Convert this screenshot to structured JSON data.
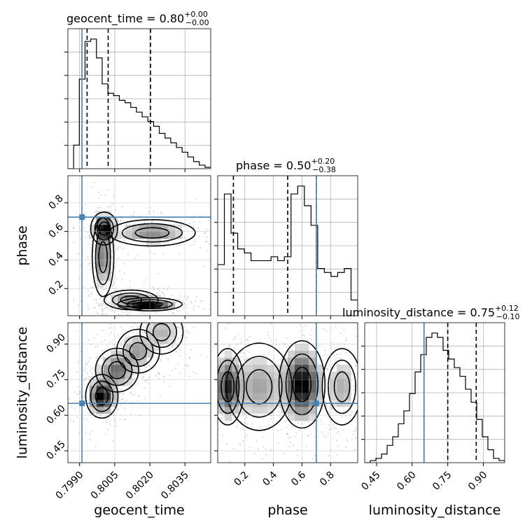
{
  "chart_data": {
    "type": "corner",
    "parameters": [
      {
        "name": "geocent_time",
        "title_prefix": "geocent_time = ",
        "median": "0.80",
        "plus": "+0.00",
        "minus": "−0.00",
        "range": [
          0.7985,
          0.8046
        ],
        "ticks": [
          0.799,
          0.8005,
          0.802,
          0.8035
        ],
        "tick_labels": [
          "0.7990",
          "0.8005",
          "0.8020",
          "0.8035"
        ],
        "truth": 0.7991,
        "quantiles": [
          0.79932,
          0.80022,
          0.80203
        ],
        "hist_edges": [
          0.7985,
          0.8046
        ],
        "hist_counts": [
          0,
          1,
          3.8,
          5.4,
          5.5,
          4.7,
          3.6,
          3.2,
          3.1,
          2.9,
          2.8,
          2.6,
          2.4,
          2.2,
          2.0,
          1.8,
          1.5,
          1.3,
          1.1,
          0.9,
          0.7,
          0.5,
          0.3,
          0.15,
          0.06
        ]
      },
      {
        "name": "phase",
        "title_prefix": "phase = ",
        "median": "0.50",
        "plus": "+0.20",
        "minus": "−0.38",
        "range": [
          0.01,
          0.99
        ],
        "ticks": [
          0.2,
          0.4,
          0.6,
          0.8
        ],
        "tick_labels": [
          "0.2",
          "0.4",
          "0.6",
          "0.8"
        ],
        "truth": 0.7,
        "quantiles": [
          0.12,
          0.5,
          0.7
        ],
        "hist_edges": [
          0.01,
          0.99
        ],
        "hist_counts": [
          1.3,
          3.1,
          2.1,
          1.7,
          1.6,
          1.4,
          1.4,
          1.4,
          1.5,
          1.4,
          1.5,
          3.1,
          3.3,
          2.8,
          2.3,
          1.2,
          1.1,
          1.0,
          1.1,
          1.2,
          0.4
        ]
      },
      {
        "name": "luminosity_distance",
        "title_prefix": "luminosity_distance = ",
        "median": "0.75",
        "plus": "+0.12",
        "minus": "−0.10",
        "range": [
          0.4,
          0.99
        ],
        "ticks": [
          0.45,
          0.6,
          0.75,
          0.9
        ],
        "tick_labels": [
          "0.45",
          "0.60",
          "0.75",
          "0.90"
        ],
        "truth": 0.65,
        "quantiles": [
          0.65,
          0.75,
          0.87
        ],
        "hist_edges": [
          0.4,
          0.99
        ],
        "hist_counts": [
          0,
          0.05,
          0.1,
          0.2,
          0.4,
          0.6,
          0.9,
          1.2,
          1.6,
          2.1,
          2.5,
          2.9,
          3.0,
          2.9,
          2.6,
          2.4,
          2.2,
          2.0,
          1.7,
          1.4,
          1.0,
          0.6,
          0.3,
          0.1,
          0.05
        ]
      }
    ],
    "pairs": [
      {
        "x": "geocent_time",
        "y": "phase",
        "truth": [
          0.7991,
          0.7
        ],
        "density_peaks": [
          {
            "x": 0.80005,
            "y": 0.62,
            "sx": 0.00025,
            "sy": 0.05,
            "w": 1.0
          },
          {
            "x": 0.8,
            "y": 0.42,
            "sx": 0.0002,
            "sy": 0.12,
            "w": 0.6
          },
          {
            "x": 0.802,
            "y": 0.09,
            "sx": 0.0006,
            "sy": 0.02,
            "w": 1.0
          },
          {
            "x": 0.8012,
            "y": 0.12,
            "sx": 0.0005,
            "sy": 0.03,
            "w": 0.5
          },
          {
            "x": 0.8021,
            "y": 0.59,
            "sx": 0.0008,
            "sy": 0.04,
            "w": 0.5
          }
        ]
      },
      {
        "x": "geocent_time",
        "y": "luminosity_distance",
        "truth": [
          0.7991,
          0.65
        ],
        "density_peaks": [
          {
            "x": 0.79995,
            "y": 0.68,
            "sx": 0.0003,
            "sy": 0.04,
            "w": 1.0
          },
          {
            "x": 0.8006,
            "y": 0.79,
            "sx": 0.0004,
            "sy": 0.04,
            "w": 0.6
          },
          {
            "x": 0.8015,
            "y": 0.87,
            "sx": 0.0004,
            "sy": 0.04,
            "w": 0.4
          },
          {
            "x": 0.8025,
            "y": 0.95,
            "sx": 0.0004,
            "sy": 0.04,
            "w": 0.3
          }
        ]
      },
      {
        "x": "phase",
        "y": "luminosity_distance",
        "truth": [
          0.7,
          0.65
        ],
        "density_peaks": [
          {
            "x": 0.08,
            "y": 0.72,
            "sx": 0.05,
            "sy": 0.07,
            "w": 0.8
          },
          {
            "x": 0.6,
            "y": 0.73,
            "sx": 0.07,
            "sy": 0.08,
            "w": 1.0
          },
          {
            "x": 0.3,
            "y": 0.72,
            "sx": 0.1,
            "sy": 0.08,
            "w": 0.35
          },
          {
            "x": 0.88,
            "y": 0.72,
            "sx": 0.06,
            "sy": 0.07,
            "w": 0.3
          }
        ]
      }
    ],
    "colors": {
      "truth": "#4682b4",
      "contour": "#000000",
      "scatter": "#999999",
      "grid": "#b0b0b0"
    },
    "grid": true
  }
}
